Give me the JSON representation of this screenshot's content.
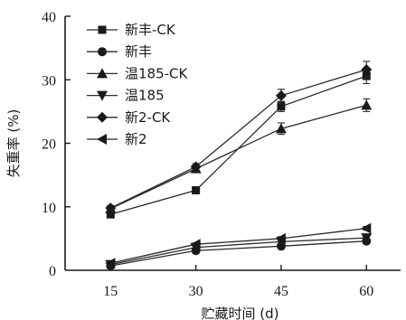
{
  "chart_data": {
    "type": "line",
    "xlabel": "贮藏时间 (d)",
    "ylabel": "失重率 (%)",
    "x": [
      15,
      30,
      45,
      60
    ],
    "xlim": [
      7,
      66
    ],
    "ylim": [
      0,
      40
    ],
    "yticks": [
      0,
      10,
      20,
      30,
      40
    ],
    "xticks": [
      15,
      30,
      45,
      60
    ],
    "grid": false,
    "legend_position": "top-left",
    "series": [
      {
        "name": "新丰-CK",
        "marker": "square",
        "values": [
          8.8,
          12.6,
          25.8,
          30.6
        ],
        "errors": [
          0.4,
          0.4,
          0.8,
          1.2
        ]
      },
      {
        "name": "新丰",
        "marker": "circle",
        "values": [
          0.7,
          3.1,
          3.8,
          4.6
        ],
        "errors": [
          0.2,
          0.2,
          0.3,
          0.3
        ]
      },
      {
        "name": "温185-CK",
        "marker": "triangle-up",
        "values": [
          9.7,
          16.0,
          22.3,
          26.0
        ],
        "errors": [
          0.4,
          0.5,
          0.9,
          1.0
        ]
      },
      {
        "name": "温185",
        "marker": "triangle-down",
        "values": [
          0.9,
          3.6,
          4.5,
          5.1
        ],
        "errors": [
          0.2,
          0.2,
          0.3,
          0.3
        ]
      },
      {
        "name": "新2-CK",
        "marker": "diamond",
        "values": [
          9.8,
          16.3,
          27.5,
          31.6
        ],
        "errors": [
          0.4,
          0.5,
          1.0,
          1.3
        ]
      },
      {
        "name": "新2",
        "marker": "triangle-left",
        "values": [
          1.1,
          4.1,
          5.0,
          6.6
        ],
        "errors": [
          0.2,
          0.2,
          0.3,
          0.3
        ]
      }
    ]
  }
}
